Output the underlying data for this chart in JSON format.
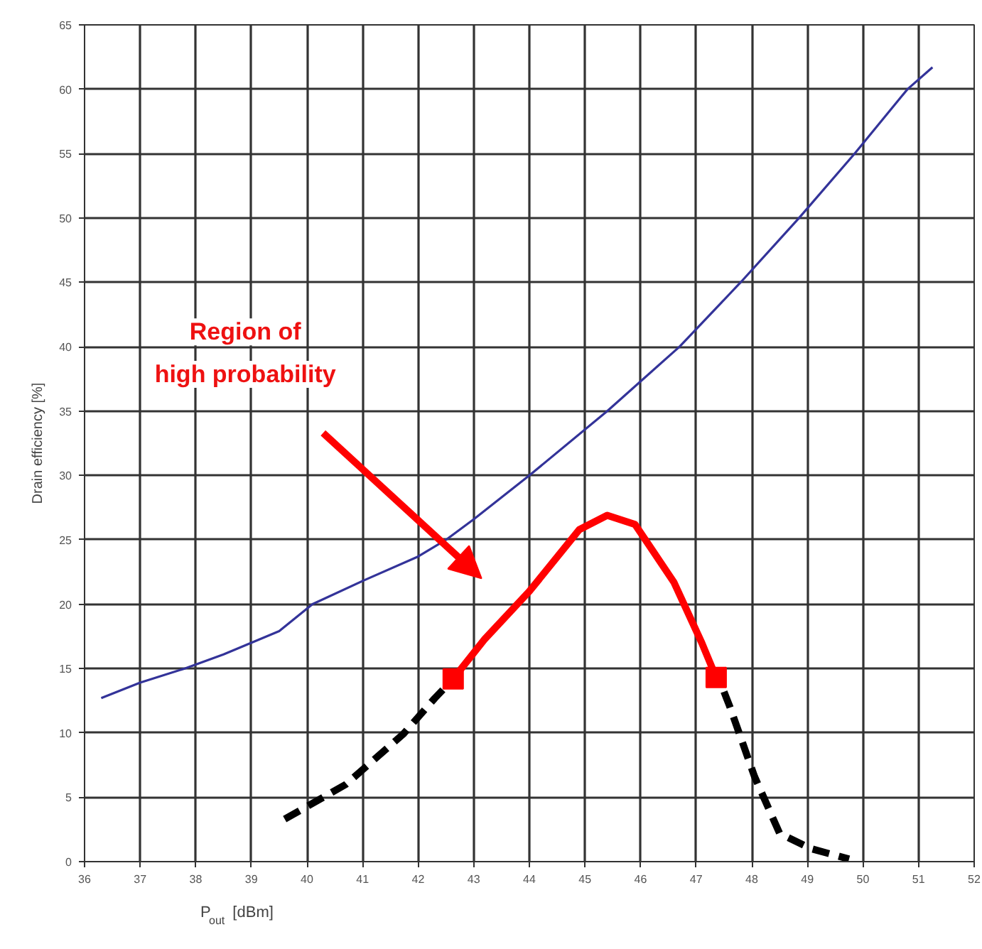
{
  "chart_data": {
    "type": "line",
    "xlabel": "P$_{out}$ [dBm]",
    "ylabel": "Drain efficiency [%]",
    "xlim": [
      36,
      52
    ],
    "xticks": [
      36,
      37,
      38,
      39,
      40,
      41,
      42,
      43,
      44,
      45,
      46,
      47,
      48,
      49,
      50,
      51,
      52
    ],
    "ylim": [
      0,
      65
    ],
    "yticks": [
      0,
      5,
      10,
      15,
      20,
      25,
      30,
      35,
      40,
      45,
      50,
      55,
      60,
      65
    ],
    "grid": true,
    "series": [
      {
        "color": "#333399",
        "line_style": "solid",
        "x": [
          36.3,
          37,
          37.8,
          38.5,
          39.5,
          40.1,
          41,
          42,
          42.5,
          43,
          44,
          45.4,
          46.7,
          47.8,
          48.85,
          49.85,
          50.8,
          51.25
        ],
        "values": [
          12.7,
          13.9,
          15,
          16.1,
          17.9,
          20,
          21.8,
          23.7,
          25,
          26.6,
          30,
          35,
          40,
          45,
          50,
          55,
          60,
          61.7
        ]
      },
      {
        "color": "#000000",
        "line_style": "dashed",
        "x": [
          39.6,
          40.7,
          41.73,
          42.3,
          42.5
        ],
        "values": [
          3.3,
          6.0,
          9.9,
          12.7,
          13.6
        ]
      },
      {
        "color": "#ff0000",
        "line_style": "solid",
        "x": [
          42.63,
          43.2,
          44.0,
          44.9,
          45.4,
          45.9,
          46.6,
          47.1,
          47.36
        ],
        "values": [
          14.2,
          17.3,
          21,
          25.8,
          26.9,
          26.2,
          21.7,
          17,
          14.3
        ]
      },
      {
        "color": "#000000",
        "line_style": "dashed",
        "x": [
          47.5,
          47.6,
          48.05,
          48.5,
          49.07,
          49.75
        ],
        "values": [
          13.2,
          12.1,
          6.6,
          2.2,
          1.0,
          0.2
        ]
      },
      {
        "type": "scatter",
        "color": "#ff0000",
        "marker": "square",
        "x": [
          42.63,
          47.36
        ],
        "values": [
          14.2,
          14.3
        ]
      }
    ],
    "annotations": [
      "Region of\nhigh probability"
    ]
  }
}
